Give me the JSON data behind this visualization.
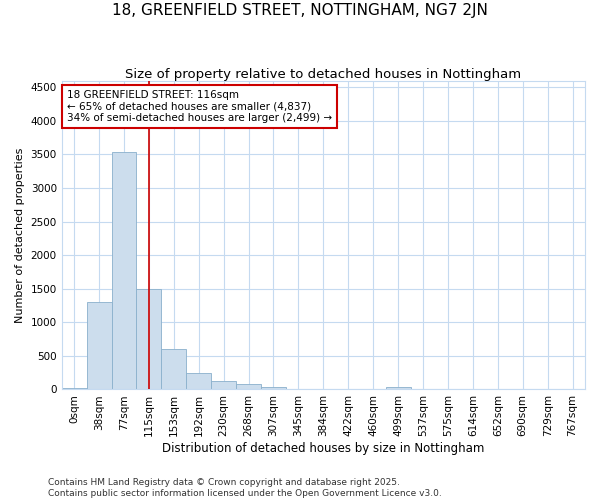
{
  "title": "18, GREENFIELD STREET, NOTTINGHAM, NG7 2JN",
  "subtitle": "Size of property relative to detached houses in Nottingham",
  "xlabel": "Distribution of detached houses by size in Nottingham",
  "ylabel": "Number of detached properties",
  "bar_color": "#ccdded",
  "bar_edge_color": "#8ab0cc",
  "background_color": "#ffffff",
  "plot_bg_color": "#ffffff",
  "grid_color": "#c5daf0",
  "bin_labels": [
    "0sqm",
    "38sqm",
    "77sqm",
    "115sqm",
    "153sqm",
    "192sqm",
    "230sqm",
    "268sqm",
    "307sqm",
    "345sqm",
    "384sqm",
    "422sqm",
    "460sqm",
    "499sqm",
    "537sqm",
    "575sqm",
    "614sqm",
    "652sqm",
    "690sqm",
    "729sqm",
    "767sqm"
  ],
  "bar_values": [
    25,
    1300,
    3540,
    1500,
    600,
    250,
    130,
    75,
    30,
    10,
    5,
    0,
    0,
    30,
    0,
    0,
    0,
    0,
    0,
    0,
    0
  ],
  "ylim": [
    0,
    4600
  ],
  "yticks": [
    0,
    500,
    1000,
    1500,
    2000,
    2500,
    3000,
    3500,
    4000,
    4500
  ],
  "annotation_text": "18 GREENFIELD STREET: 116sqm\n← 65% of detached houses are smaller (4,837)\n34% of semi-detached houses are larger (2,499) →",
  "vline_x": 3.0,
  "annotation_box_facecolor": "#ffffff",
  "annotation_box_edgecolor": "#cc0000",
  "footnote": "Contains HM Land Registry data © Crown copyright and database right 2025.\nContains public sector information licensed under the Open Government Licence v3.0.",
  "title_fontsize": 11,
  "subtitle_fontsize": 9.5,
  "xlabel_fontsize": 8.5,
  "ylabel_fontsize": 8,
  "tick_fontsize": 7.5,
  "annotation_fontsize": 7.5,
  "footnote_fontsize": 6.5
}
